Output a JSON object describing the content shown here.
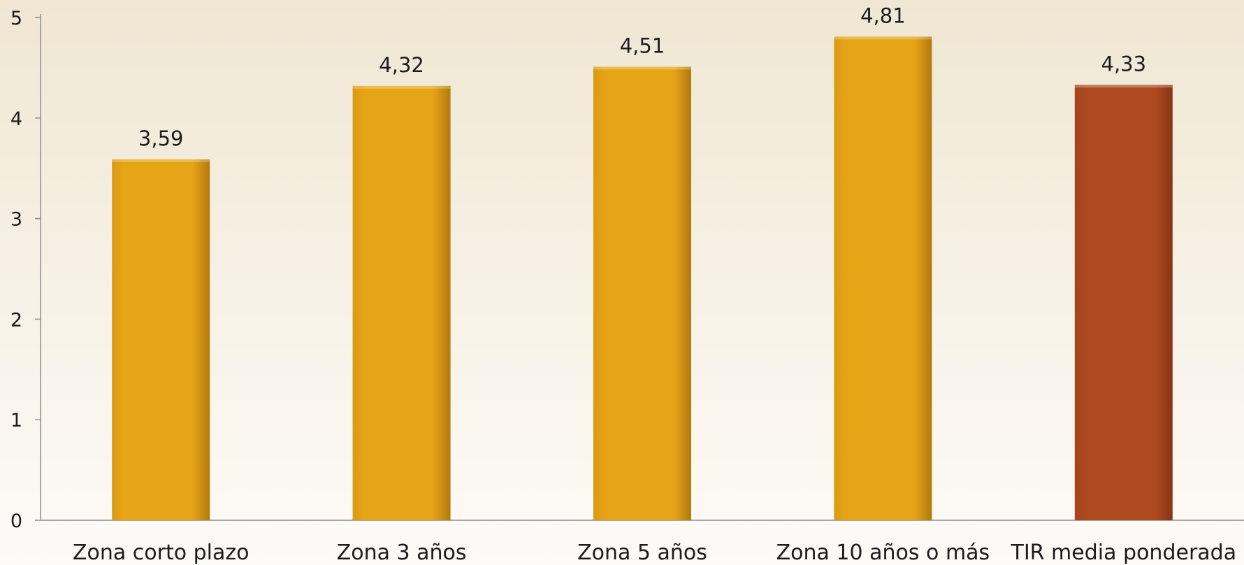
{
  "chart_data": {
    "type": "bar",
    "categories": [
      "Zona corto plazo",
      "Zona 3 años",
      "Zona 5 años",
      "Zona 10 años o más",
      "TIR media ponderada"
    ],
    "values": [
      3.59,
      4.32,
      4.51,
      4.81,
      4.33
    ],
    "value_labels": [
      "3,59",
      "4,32",
      "4,51",
      "4,81",
      "4,33"
    ],
    "bar_colors": [
      "#e6a417",
      "#e6a417",
      "#e6a417",
      "#e6a417",
      "#ad4a20"
    ],
    "title": "",
    "xlabel": "",
    "ylabel": "",
    "ylim": [
      0,
      5
    ],
    "yticks": [
      0,
      1,
      2,
      3,
      4,
      5
    ],
    "grid": false,
    "legend": "none"
  }
}
